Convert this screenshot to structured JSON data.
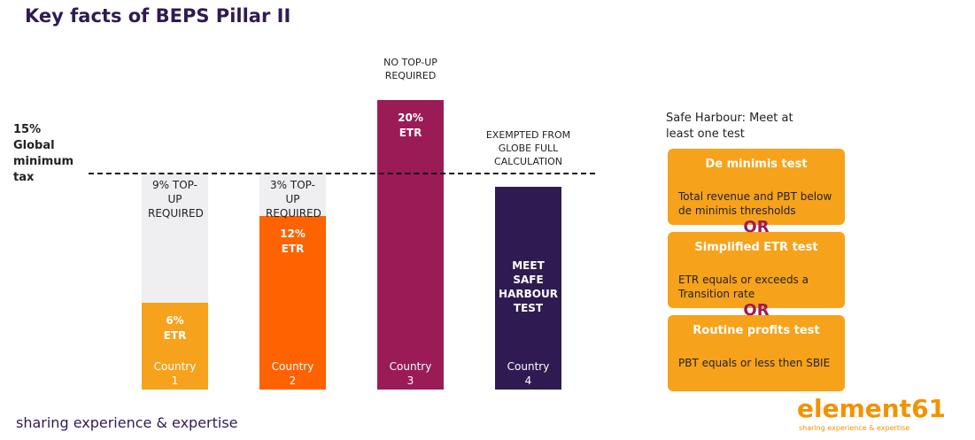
{
  "title": "Key facts of BEPS Pillar II",
  "chart_data": {
    "type": "stacked_bar",
    "categories": [
      "Country 1",
      "Country 2",
      "Country 3",
      "Country 4"
    ],
    "ylim": [
      0,
      20
    ],
    "series": [
      {
        "colors": [
          "#f6a21d",
          "#ff6200",
          "#9b1b57",
          "#2f1b52"
        ],
        "values": [
          6,
          12,
          20,
          14
        ],
        "value_labels": [
          "6% ETR",
          "12% ETR",
          "20% ETR",
          null
        ]
      },
      {
        "color": "#efeef0",
        "values": [
          9,
          3,
          null,
          null
        ],
        "value_labels": [
          "9% TOP-UP REQUIRED",
          "3% TOP-UP REQUIRED",
          null,
          null
        ]
      }
    ],
    "bar_notes": [
      null,
      null,
      null,
      "MEET SAFE HARBOUR TEST"
    ],
    "annotations": [
      null,
      null,
      "NO TOP-UP REQUIRED",
      "EXEMPTED FROM GLOBE FULL CALCULATION"
    ],
    "threshold": {
      "value": 15,
      "label": "15% Global minimum tax"
    }
  },
  "safe_harbour": {
    "title": "Safe Harbour: Meet at least one test",
    "separator": "OR",
    "tests": [
      {
        "name": "De minimis test",
        "text": "Total revenue and PBT below de minimis thresholds"
      },
      {
        "name": "Simplified ETR test",
        "text": "ETR equals or exceeds a Transition rate"
      },
      {
        "name": "Routine profits test",
        "text": "PBT equals or less then SBIE"
      }
    ]
  },
  "footer": "sharing experience & expertise",
  "logo": {
    "name": "element61",
    "tagline": "sharing experience & expertise"
  }
}
